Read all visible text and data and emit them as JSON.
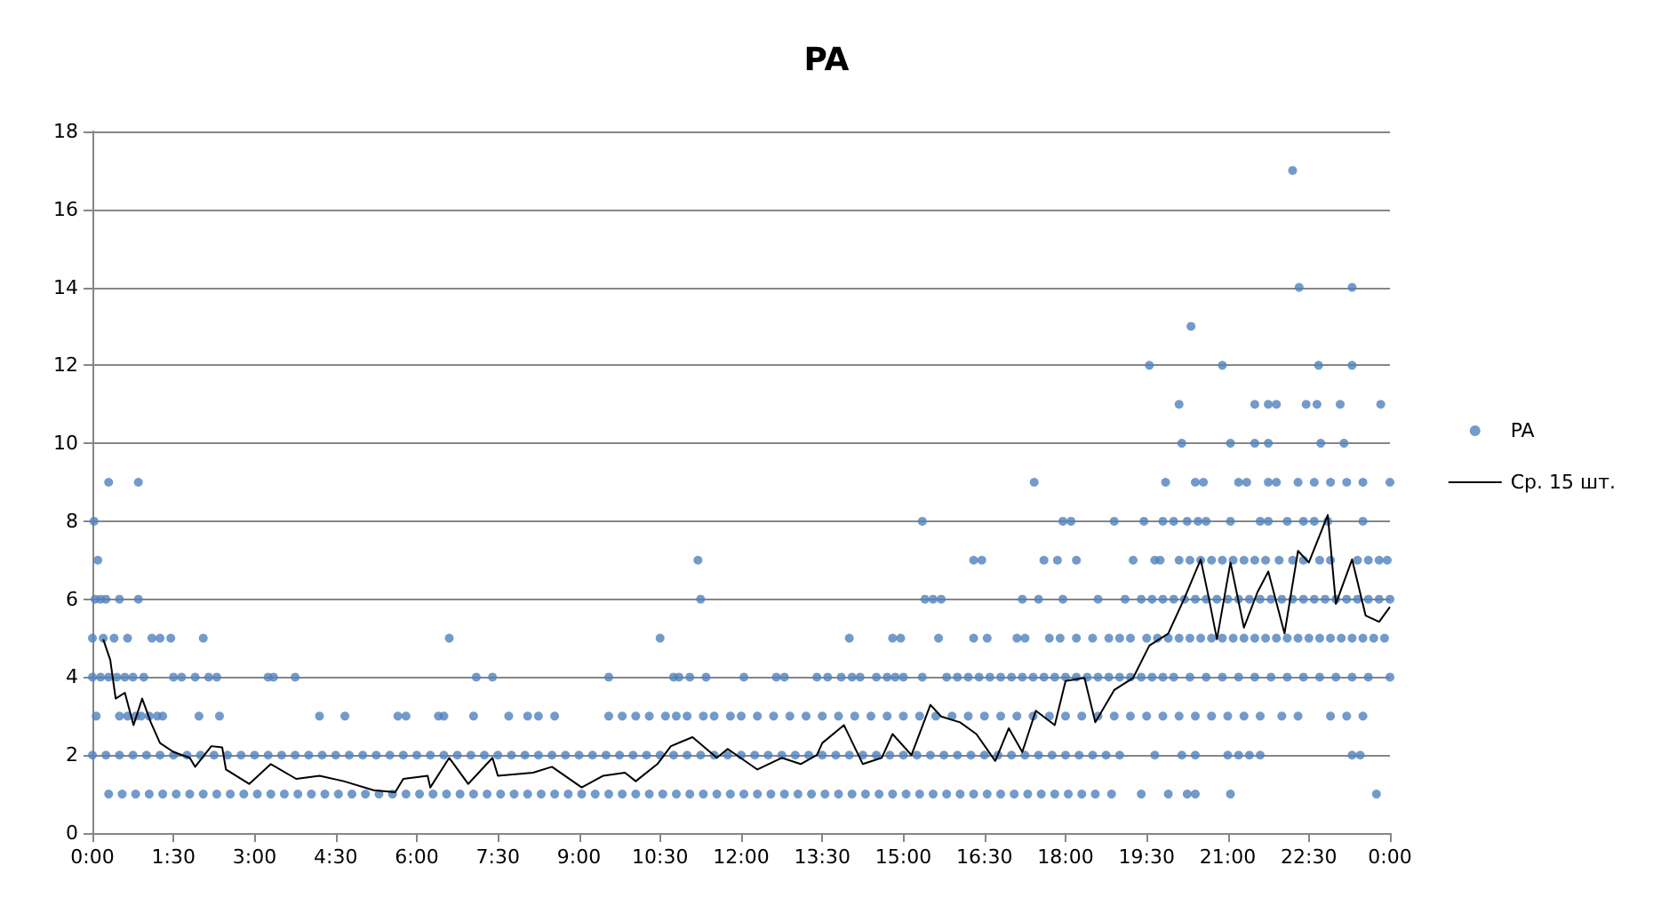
{
  "chart_data": {
    "type": "scatter",
    "title": "PA",
    "xlim": [
      0,
      24
    ],
    "xticks": [
      {
        "value": 0,
        "label": "0:00"
      },
      {
        "value": 1.5,
        "label": "1:30"
      },
      {
        "value": 3,
        "label": "3:00"
      },
      {
        "value": 4.5,
        "label": "4:30"
      },
      {
        "value": 6,
        "label": "6:00"
      },
      {
        "value": 7.5,
        "label": "7:30"
      },
      {
        "value": 9,
        "label": "9:00"
      },
      {
        "value": 10.5,
        "label": "10:30"
      },
      {
        "value": 12,
        "label": "12:00"
      },
      {
        "value": 13.5,
        "label": "13:30"
      },
      {
        "value": 15,
        "label": "15:00"
      },
      {
        "value": 16.5,
        "label": "16:30"
      },
      {
        "value": 18,
        "label": "18:00"
      },
      {
        "value": 19.5,
        "label": "19:30"
      },
      {
        "value": 21,
        "label": "21:00"
      },
      {
        "value": 22.5,
        "label": "22:30"
      },
      {
        "value": 24,
        "label": "0:00"
      }
    ],
    "ylim": [
      0,
      18
    ],
    "yticks": [
      0,
      2,
      4,
      6,
      8,
      10,
      12,
      14,
      16,
      18
    ],
    "grid": "y",
    "legend": "right",
    "series": [
      {
        "name": "PA",
        "color": "#4f81bd",
        "marker": "circle",
        "x": [
          22.2,
          22.32,
          23.3,
          20.32,
          19.55,
          20.9,
          22.68,
          23.3,
          20.1,
          21.5,
          21.75,
          21.9,
          22.45,
          22.65,
          23.08,
          23.83,
          20.15,
          21.05,
          21.5,
          21.75,
          22.72,
          23.15,
          0.3,
          0.85,
          17.42,
          19.85,
          20.4,
          20.55,
          21.2,
          21.35,
          21.75,
          21.9,
          22.3,
          22.6,
          22.9,
          23.2,
          23.5,
          24,
          0.03,
          15.35,
          17.95,
          18.1,
          18.9,
          19.45,
          19.8,
          20.0,
          20.25,
          20.45,
          20.6,
          21.05,
          21.6,
          21.75,
          22.1,
          22.4,
          22.6,
          22.85,
          23.5,
          0.1,
          11.2,
          16.3,
          16.45,
          17.6,
          17.85,
          18.2,
          19.25,
          19.65,
          19.75,
          20.1,
          20.3,
          20.5,
          20.7,
          20.9,
          21.1,
          21.3,
          21.5,
          21.7,
          21.95,
          22.2,
          22.4,
          22.7,
          22.9,
          23.4,
          23.6,
          23.8,
          23.95,
          0.05,
          0.15,
          0.25,
          0.5,
          0.85,
          11.25,
          15.4,
          15.55,
          15.7,
          17.2,
          17.5,
          17.95,
          18.6,
          19.1,
          19.4,
          19.6,
          19.8,
          20.0,
          20.2,
          20.4,
          20.6,
          20.8,
          21.0,
          21.2,
          21.4,
          21.6,
          21.8,
          22.0,
          22.2,
          22.4,
          22.6,
          22.8,
          23.0,
          23.2,
          23.4,
          23.6,
          23.8,
          24,
          0,
          0.2,
          0.4,
          0.65,
          1.1,
          1.25,
          1.45,
          2.05,
          6.6,
          10.5,
          14.0,
          14.8,
          14.95,
          15.65,
          16.3,
          16.55,
          17.1,
          17.25,
          17.7,
          17.9,
          18.2,
          18.5,
          18.8,
          19.0,
          19.2,
          19.5,
          19.7,
          19.9,
          20.1,
          20.3,
          20.5,
          20.7,
          20.9,
          21.1,
          21.3,
          21.5,
          21.7,
          21.9,
          22.1,
          22.3,
          22.5,
          22.7,
          22.9,
          23.1,
          23.3,
          23.5,
          23.7,
          23.9,
          0,
          0.15,
          0.3,
          0.45,
          0.6,
          0.75,
          0.95,
          1.5,
          1.65,
          1.9,
          2.15,
          2.3,
          3.25,
          3.35,
          3.75,
          7.1,
          7.4,
          9.55,
          10.75,
          10.85,
          11.05,
          11.35,
          12.05,
          12.65,
          12.8,
          13.4,
          13.6,
          13.85,
          14.05,
          14.2,
          14.5,
          14.7,
          14.85,
          15.0,
          15.35,
          15.8,
          16.0,
          16.2,
          16.4,
          16.6,
          16.8,
          17.0,
          17.2,
          17.4,
          17.6,
          17.8,
          18.0,
          18.2,
          18.4,
          18.6,
          18.8,
          19.0,
          19.2,
          19.4,
          19.6,
          19.8,
          20.0,
          20.3,
          20.6,
          20.9,
          21.2,
          21.5,
          21.8,
          22.1,
          22.4,
          22.7,
          23.0,
          23.3,
          23.6,
          24,
          0.07,
          0.5,
          0.65,
          0.8,
          0.9,
          1.05,
          1.2,
          1.3,
          1.97,
          2.35,
          4.2,
          4.67,
          5.65,
          5.8,
          6.4,
          6.5,
          7.05,
          7.7,
          8.05,
          8.25,
          8.55,
          9.55,
          9.8,
          10.05,
          10.3,
          10.6,
          10.8,
          11.0,
          11.3,
          11.5,
          11.8,
          12.0,
          12.3,
          12.6,
          12.9,
          13.2,
          13.5,
          13.8,
          14.1,
          14.4,
          14.7,
          15.0,
          15.3,
          15.6,
          15.9,
          16.2,
          16.5,
          16.8,
          17.1,
          17.4,
          17.7,
          18.0,
          18.3,
          18.6,
          18.9,
          19.2,
          19.5,
          19.8,
          20.1,
          20.4,
          20.7,
          21.0,
          21.3,
          21.6,
          22.0,
          22.3,
          22.9,
          23.2,
          23.5,
          0,
          0.25,
          0.5,
          0.75,
          1,
          1.25,
          1.5,
          1.75,
          2,
          2.25,
          2.5,
          2.75,
          3,
          3.25,
          3.5,
          3.75,
          4,
          4.25,
          4.5,
          4.75,
          5,
          5.25,
          5.5,
          5.75,
          6,
          6.25,
          6.5,
          6.75,
          7,
          7.25,
          7.5,
          7.75,
          8,
          8.25,
          8.5,
          8.75,
          9,
          9.25,
          9.5,
          9.75,
          10,
          10.25,
          10.5,
          10.75,
          11,
          11.25,
          11.5,
          11.75,
          12,
          12.25,
          12.5,
          12.75,
          13,
          13.25,
          13.5,
          13.75,
          14,
          14.25,
          14.5,
          14.75,
          15,
          15.25,
          15.5,
          15.75,
          16,
          16.25,
          16.5,
          16.75,
          17,
          17.25,
          17.5,
          17.75,
          18,
          18.25,
          18.5,
          18.75,
          19,
          19.65,
          20.15,
          20.4,
          21.0,
          21.2,
          21.4,
          21.6,
          23.3,
          23.45,
          0.3,
          0.55,
          0.8,
          1.05,
          1.3,
          1.55,
          1.8,
          2.05,
          2.3,
          2.55,
          2.8,
          3.05,
          3.3,
          3.55,
          3.8,
          4.05,
          4.3,
          4.55,
          4.8,
          5.05,
          5.3,
          5.55,
          5.8,
          6.05,
          6.3,
          6.55,
          6.8,
          7.05,
          7.3,
          7.55,
          7.8,
          8.05,
          8.3,
          8.55,
          8.8,
          9.05,
          9.3,
          9.55,
          9.8,
          10.05,
          10.3,
          10.55,
          10.8,
          11.05,
          11.3,
          11.55,
          11.8,
          12.05,
          12.3,
          12.55,
          12.8,
          13.05,
          13.3,
          13.55,
          13.8,
          14.05,
          14.3,
          14.55,
          14.8,
          15.05,
          15.3,
          15.55,
          15.8,
          16.05,
          16.3,
          16.55,
          16.8,
          17.05,
          17.3,
          17.55,
          17.8,
          18.05,
          18.3,
          18.55,
          18.85,
          19.4,
          19.9,
          20.25,
          20.4,
          21.05,
          23.75
        ],
        "values": [
          17,
          14,
          14,
          13,
          12,
          12,
          12,
          12,
          11,
          11,
          11,
          11,
          11,
          11,
          11,
          11,
          10,
          10,
          10,
          10,
          10,
          10,
          9,
          9,
          9,
          9,
          9,
          9,
          9,
          9,
          9,
          9,
          9,
          9,
          9,
          9,
          9,
          9,
          8,
          8,
          8,
          8,
          8,
          8,
          8,
          8,
          8,
          8,
          8,
          8,
          8,
          8,
          8,
          8,
          8,
          8,
          8,
          7,
          7,
          7,
          7,
          7,
          7,
          7,
          7,
          7,
          7,
          7,
          7,
          7,
          7,
          7,
          7,
          7,
          7,
          7,
          7,
          7,
          7,
          7,
          7,
          7,
          7,
          7,
          7,
          6,
          6,
          6,
          6,
          6,
          6,
          6,
          6,
          6,
          6,
          6,
          6,
          6,
          6,
          6,
          6,
          6,
          6,
          6,
          6,
          6,
          6,
          6,
          6,
          6,
          6,
          6,
          6,
          6,
          6,
          6,
          6,
          6,
          6,
          6,
          6,
          6,
          6,
          5,
          5,
          5,
          5,
          5,
          5,
          5,
          5,
          5,
          5,
          5,
          5,
          5,
          5,
          5,
          5,
          5,
          5,
          5,
          5,
          5,
          5,
          5,
          5,
          5,
          5,
          5,
          5,
          5,
          5,
          5,
          5,
          5,
          5,
          5,
          5,
          5,
          5,
          5,
          5,
          5,
          5,
          5,
          5,
          5,
          5,
          5,
          5,
          4,
          4,
          4,
          4,
          4,
          4,
          4,
          4,
          4,
          4,
          4,
          4,
          4,
          4,
          4,
          4,
          4,
          4,
          4,
          4,
          4,
          4,
          4,
          4,
          4,
          4,
          4,
          4,
          4,
          4,
          4,
          4,
          4,
          4,
          4,
          4,
          4,
          4,
          4,
          4,
          4,
          4,
          4,
          4,
          4,
          4,
          4,
          4,
          4,
          4,
          4,
          4,
          4,
          4,
          4,
          4,
          4,
          4,
          4,
          4,
          4,
          4,
          4,
          4,
          4,
          4,
          4,
          4,
          4,
          4,
          3,
          3,
          3,
          3,
          3,
          3,
          3,
          3,
          3,
          3,
          3,
          3,
          3,
          3,
          3,
          3,
          3,
          3,
          3,
          3,
          3,
          3,
          3,
          3,
          3,
          3,
          3,
          3,
          3,
          3,
          3,
          3,
          3,
          3,
          3,
          3,
          3,
          3,
          3,
          3,
          3,
          3,
          3,
          3,
          3,
          3,
          3,
          3,
          3,
          3,
          3,
          3,
          3,
          3,
          3,
          3,
          3,
          3,
          3,
          3,
          3,
          3,
          3,
          3,
          3,
          3,
          3,
          3,
          3,
          2,
          2,
          2,
          2,
          2,
          2,
          2,
          2,
          2,
          2,
          2,
          2,
          2,
          2,
          2,
          2,
          2,
          2,
          2,
          2,
          2,
          2,
          2,
          2,
          2,
          2,
          2,
          2,
          2,
          2,
          2,
          2,
          2,
          2,
          2,
          2,
          2,
          2,
          2,
          2,
          2,
          2,
          2,
          2,
          2,
          2,
          2,
          2,
          2,
          2,
          2,
          2,
          2,
          2,
          2,
          2,
          2,
          2,
          2,
          2,
          2,
          2,
          2,
          2,
          2,
          2,
          2,
          2,
          2,
          2,
          2,
          2,
          2,
          2,
          2,
          2,
          2,
          2,
          2,
          2,
          2,
          2,
          2,
          2,
          2,
          2,
          1,
          1,
          1,
          1,
          1,
          1,
          1,
          1,
          1,
          1,
          1,
          1,
          1,
          1,
          1,
          1,
          1,
          1,
          1,
          1,
          1,
          1,
          1,
          1,
          1,
          1,
          1,
          1,
          1,
          1,
          1,
          1,
          1,
          1,
          1,
          1,
          1,
          1,
          1,
          1,
          1,
          1,
          1,
          1,
          1,
          1,
          1,
          1,
          1,
          1,
          1,
          1,
          1,
          1,
          1,
          1,
          1,
          1,
          1,
          1,
          1,
          1,
          1,
          1,
          1,
          1,
          1,
          1,
          1,
          1,
          1,
          1,
          1,
          1,
          1,
          1,
          1,
          1,
          1,
          1,
          1
        ]
      },
      {
        "name": "Ср. 15 шт.",
        "type": "line",
        "color": "#000000",
        "marker": "none",
        "line_style": "solid",
        "x": [
          0.2,
          0.33,
          0.43,
          0.6,
          0.76,
          0.92,
          1.08,
          1.25,
          1.5,
          1.8,
          1.9,
          2.2,
          2.4,
          2.47,
          2.9,
          3.3,
          3.77,
          4.2,
          4.65,
          5.2,
          5.6,
          5.75,
          6.2,
          6.25,
          6.6,
          6.95,
          7.4,
          7.5,
          8.15,
          8.5,
          9.05,
          9.45,
          9.85,
          10.05,
          10.45,
          10.7,
          11.1,
          11.55,
          11.75,
          12.3,
          12.75,
          13.1,
          13.4,
          13.5,
          13.9,
          14.25,
          14.6,
          14.8,
          15.15,
          15.5,
          15.7,
          16.05,
          16.35,
          16.7,
          16.95,
          17.2,
          17.45,
          17.8,
          18.0,
          18.35,
          18.55,
          18.9,
          19.25,
          19.55,
          19.9,
          20.2,
          20.5,
          20.65,
          20.8,
          21.05,
          21.3,
          21.55,
          21.75,
          22.05,
          22.3,
          22.5,
          22.85,
          23.0,
          23.3,
          23.55,
          23.8,
          24
        ],
        "values": [
          4.97,
          4.44,
          3.45,
          3.6,
          2.77,
          3.45,
          2.84,
          2.31,
          2.08,
          1.93,
          1.7,
          2.23,
          2.2,
          1.63,
          1.26,
          1.77,
          1.39,
          1.47,
          1.33,
          1.1,
          1.05,
          1.39,
          1.47,
          1.17,
          1.93,
          1.26,
          1.93,
          1.47,
          1.55,
          1.7,
          1.17,
          1.47,
          1.55,
          1.33,
          1.77,
          2.23,
          2.46,
          1.93,
          2.16,
          1.63,
          1.93,
          1.77,
          2.0,
          2.31,
          2.77,
          1.77,
          1.93,
          2.54,
          2.0,
          3.29,
          2.99,
          2.84,
          2.54,
          1.85,
          2.69,
          2.08,
          3.14,
          2.77,
          3.9,
          3.98,
          2.84,
          3.67,
          3.98,
          4.81,
          5.12,
          6.03,
          7.02,
          6.03,
          4.97,
          6.94,
          5.27,
          6.18,
          6.71,
          5.12,
          7.24,
          6.94,
          8.16,
          5.88,
          7.02,
          5.58,
          5.42,
          5.8
        ]
      }
    ]
  }
}
